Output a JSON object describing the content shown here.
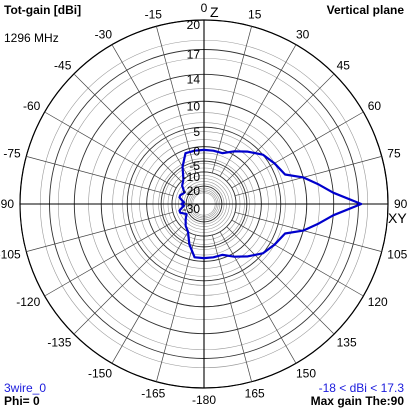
{
  "header": {
    "left": "Tot-gain [dBi]",
    "right": "Vertical plane",
    "frequency": "1296 MHz"
  },
  "footer": {
    "model": "3wire_0",
    "phi": "Phi= 0",
    "range": "-18 < dBi < 17.3",
    "max_gain": "Max gain The:90"
  },
  "axis_labels": {
    "top": "Z",
    "right": "XY"
  },
  "colors": {
    "pattern": "#0000cc",
    "grid": "#999999",
    "axes": "#000000",
    "footer_text": "#1a1adc"
  },
  "chart_data": {
    "type": "polar",
    "title": "Tot-gain [dBi]",
    "subtitle": "Vertical plane",
    "theta_zero": "top",
    "theta_direction": "clockwise",
    "angle_step_deg": 15,
    "angle_tick_labels": [
      "0",
      "15",
      "30",
      "45",
      "60",
      "75",
      "90",
      "105",
      "120",
      "135",
      "150",
      "165",
      "-180",
      "-165",
      "-150",
      "-135",
      "-120",
      "-105",
      "-90",
      "-75",
      "-60",
      "-45",
      "-30",
      "-15"
    ],
    "radial_tick_labels": [
      "20",
      "17",
      "14",
      "10",
      "5",
      "0",
      "-5",
      "-10",
      "-20",
      "-30"
    ],
    "radial_rings_dbi": [
      20,
      17,
      14,
      10,
      5,
      0,
      -5,
      -10,
      -20,
      -30
    ],
    "rlim_dbi": [
      -30,
      20
    ],
    "grid": true,
    "series": [
      {
        "name": "3wire_0",
        "theta_deg": [
          0,
          10,
          20,
          30,
          40,
          50,
          60,
          70,
          75,
          80,
          85,
          90,
          95,
          100,
          105,
          110,
          120,
          130,
          140,
          150,
          160,
          170,
          180,
          190,
          200,
          210,
          220,
          230,
          240,
          250,
          255,
          260,
          265,
          270,
          275,
          280,
          285,
          290,
          300,
          310,
          320,
          330,
          340,
          350
        ],
        "gain_dbi": [
          -1,
          -1,
          -1,
          1,
          3,
          5,
          6,
          7,
          10,
          12,
          14,
          17.3,
          14,
          12,
          10,
          7,
          6,
          5,
          3,
          1,
          -1,
          -1,
          -1,
          -1,
          -5,
          -10,
          -12,
          -15,
          -18,
          -14,
          -14,
          -16,
          -18,
          -16,
          -18,
          -16,
          -14,
          -14,
          -16,
          -12,
          -10,
          -5,
          -1,
          -1
        ]
      }
    ]
  }
}
